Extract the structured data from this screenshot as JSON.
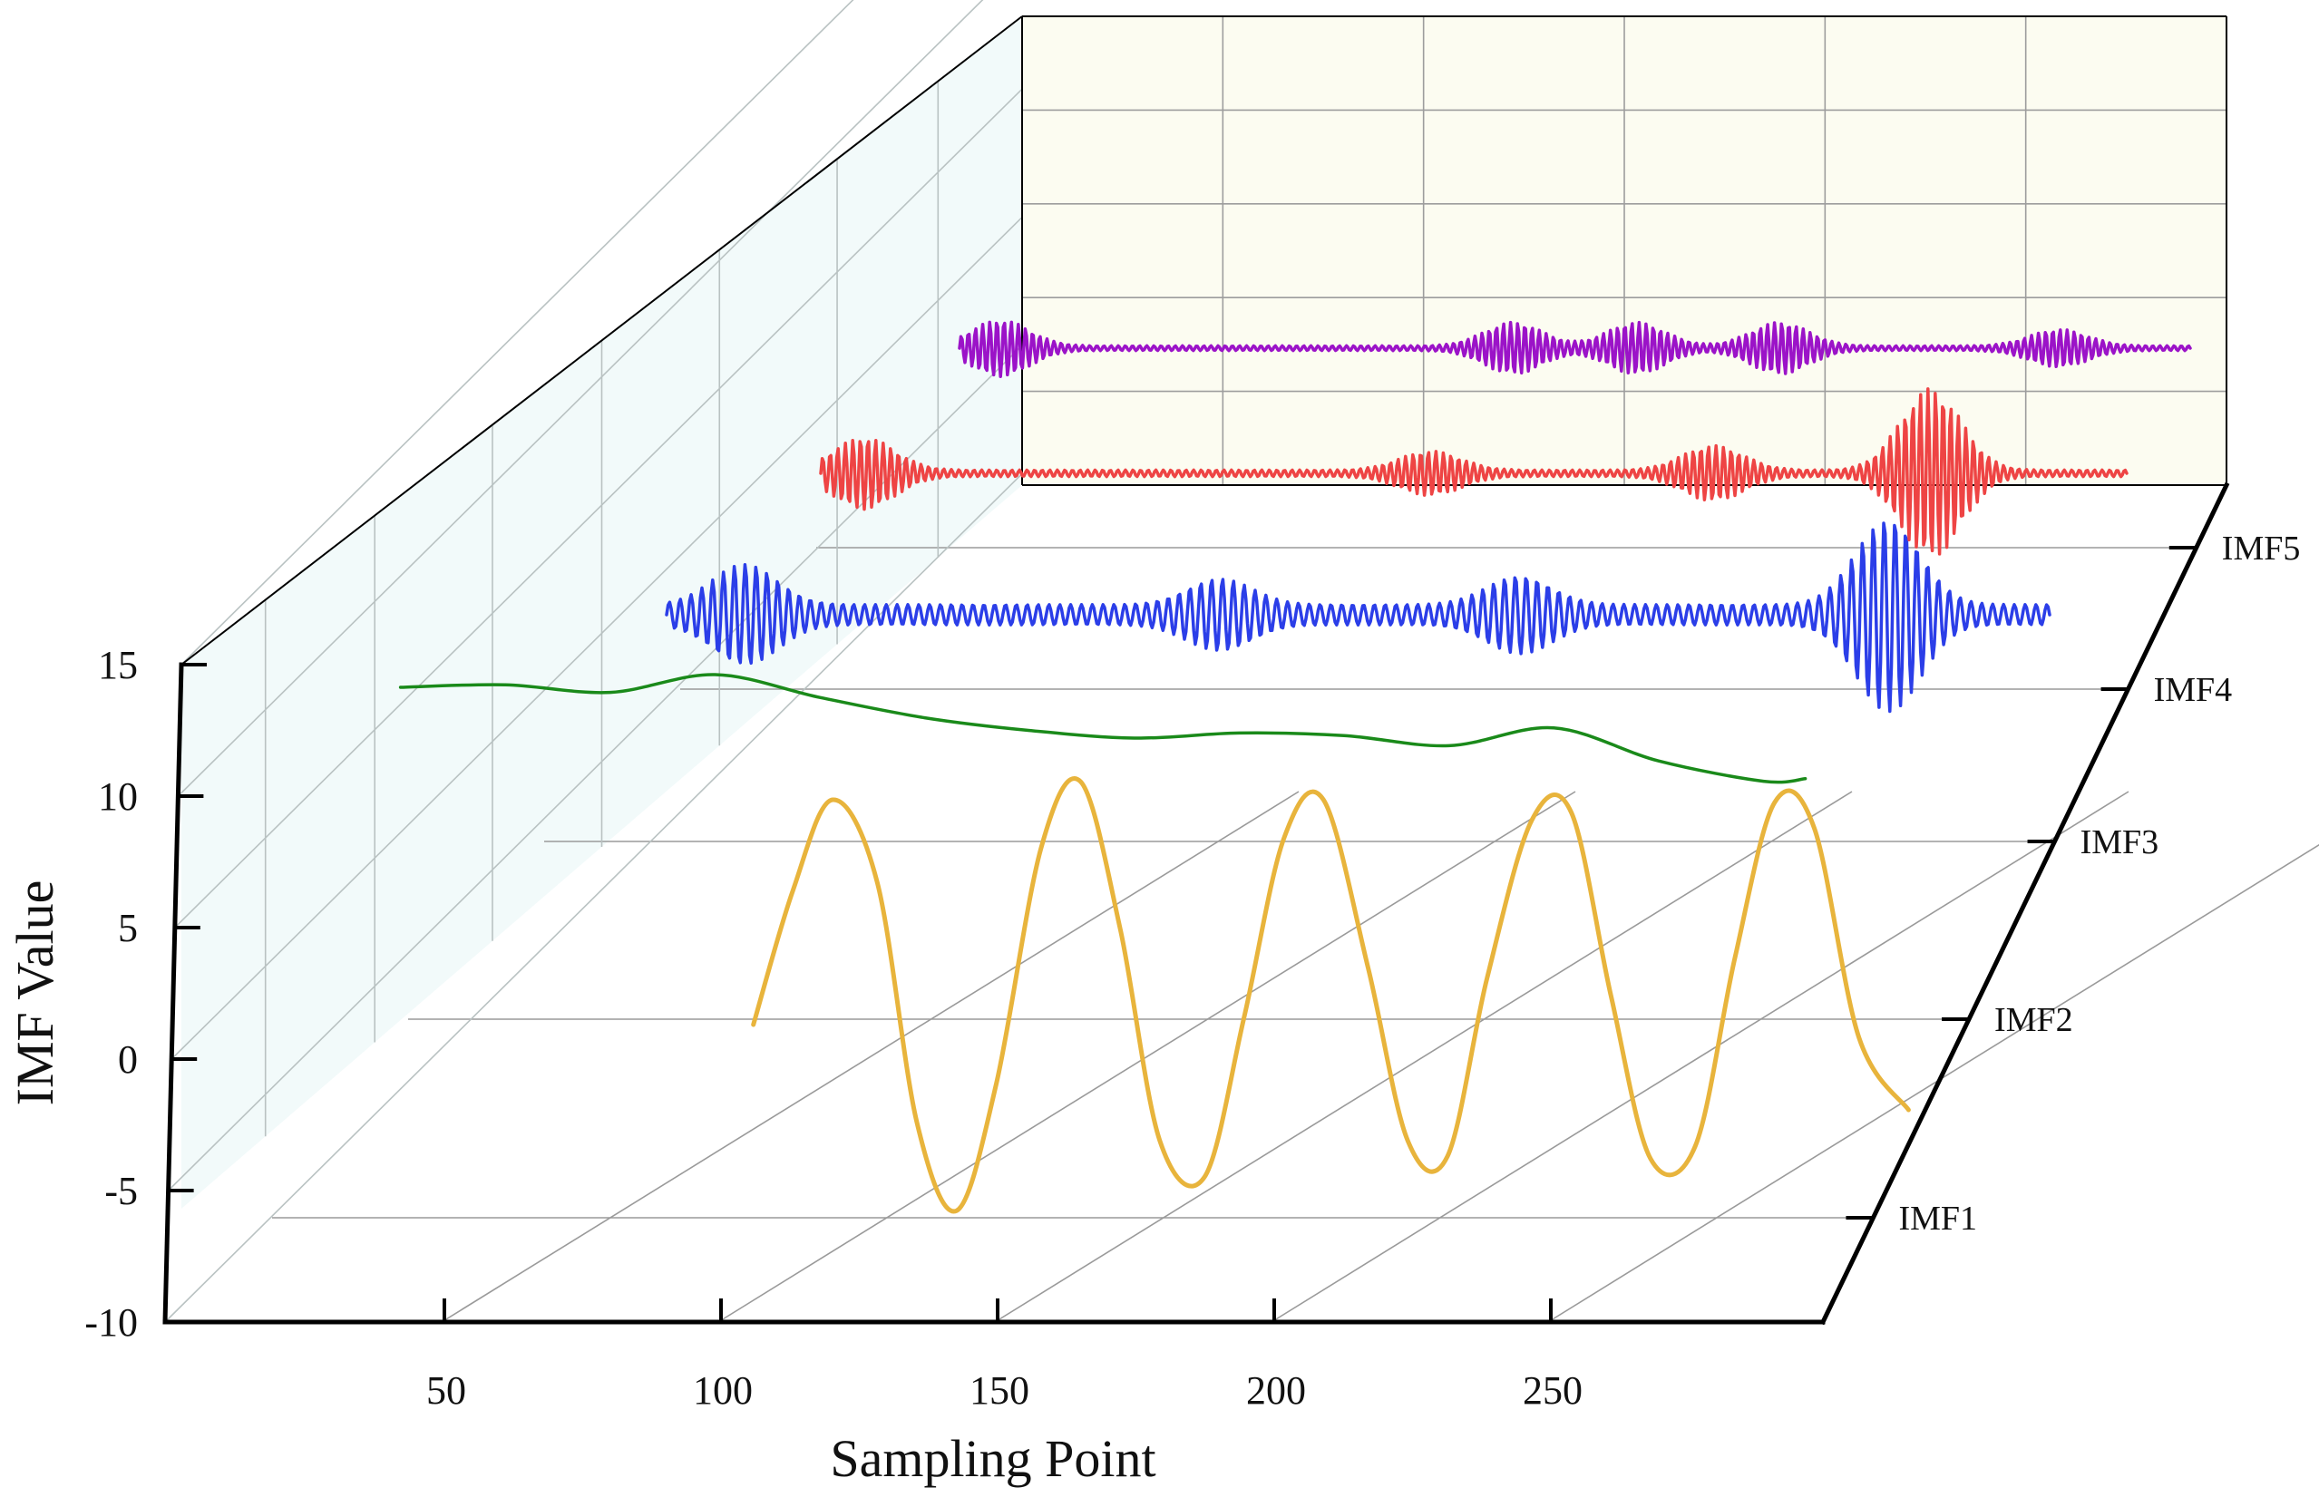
{
  "chart_data": {
    "type": "line",
    "style": "3d-waterfall",
    "title": "",
    "xlabel": "Sampling Point",
    "ylabel": "IMF Value",
    "xlim": [
      0,
      300
    ],
    "ylim": [
      -10,
      15
    ],
    "x_ticks": [
      "50",
      "100",
      "150",
      "200",
      "250"
    ],
    "y_ticks": [
      "-10",
      "-5",
      "0",
      "5",
      "10",
      "15"
    ],
    "depth_labels": [
      "IMF1",
      "IMF2",
      "IMF3",
      "IMF4",
      "IMF5"
    ],
    "series": [
      {
        "name": "IMF1",
        "color": "#e8b43c",
        "x_start": 55,
        "x_end": 288,
        "mean": 4.5,
        "amplitude": 8.0,
        "period": 33,
        "x": [
          55,
          63,
          71,
          80,
          88,
          96,
          104,
          113,
          121,
          129,
          137,
          146,
          154,
          162,
          170,
          179,
          187,
          195,
          203,
          212,
          220,
          228,
          236,
          245,
          253,
          261,
          269,
          278,
          288
        ],
        "values": [
          3.8,
          9.0,
          12.5,
          9.3,
          0.0,
          -3.4,
          1.5,
          10.6,
          13.2,
          7.5,
          -0.7,
          -2.1,
          4.1,
          11.0,
          12.5,
          6.0,
          -0.7,
          -1.3,
          5.6,
          11.7,
          12.0,
          4.9,
          -1.4,
          -0.9,
          6.4,
          12.4,
          11.4,
          3.3,
          0.5
        ]
      },
      {
        "name": "IMF2",
        "color": "#1a8a1a",
        "x_start": 20,
        "x_end": 288,
        "values_approx": "slow trend, 14.5 near start, ~12 in middle, ~10.5 at end",
        "x": [
          20,
          40,
          60,
          80,
          100,
          120,
          140,
          160,
          180,
          200,
          220,
          240,
          260,
          280,
          288
        ],
        "values": [
          14.5,
          14.6,
          14.3,
          15.0,
          14.1,
          13.3,
          12.8,
          12.5,
          12.7,
          12.6,
          12.2,
          12.9,
          11.6,
          10.8,
          10.9
        ]
      },
      {
        "name": "IMF3",
        "color": "#2b3ee8",
        "x_start": 0,
        "x_end": 300,
        "mean": 0,
        "baseline_amplitude": 0.35,
        "bursts": [
          {
            "center": 17,
            "amplitude": 1.4
          },
          {
            "center": 120,
            "amplitude": 0.9
          },
          {
            "center": 185,
            "amplitude": 1.0
          },
          {
            "center": 265,
            "amplitude": 3.0
          }
        ]
      },
      {
        "name": "IMF4",
        "color": "#ee4444",
        "x_start": 0,
        "x_end": 300,
        "mean": 0,
        "baseline_amplitude": 0.12,
        "bursts": [
          {
            "center": 10,
            "amplitude": 1.2
          },
          {
            "center": 140,
            "amplitude": 0.7
          },
          {
            "center": 205,
            "amplitude": 0.9
          },
          {
            "center": 255,
            "amplitude": 3.0
          }
        ]
      },
      {
        "name": "IMF5",
        "color": "#9b13c8",
        "x_start": 0,
        "x_end": 300,
        "mean": 0,
        "baseline_amplitude": 0.1,
        "bursts": [
          {
            "center": 10,
            "amplitude": 1.1
          },
          {
            "center": 135,
            "amplitude": 1.0
          },
          {
            "center": 165,
            "amplitude": 1.0
          },
          {
            "center": 200,
            "amplitude": 1.0
          },
          {
            "center": 268,
            "amplitude": 0.7
          }
        ]
      }
    ],
    "grid": true,
    "legend": "none"
  }
}
